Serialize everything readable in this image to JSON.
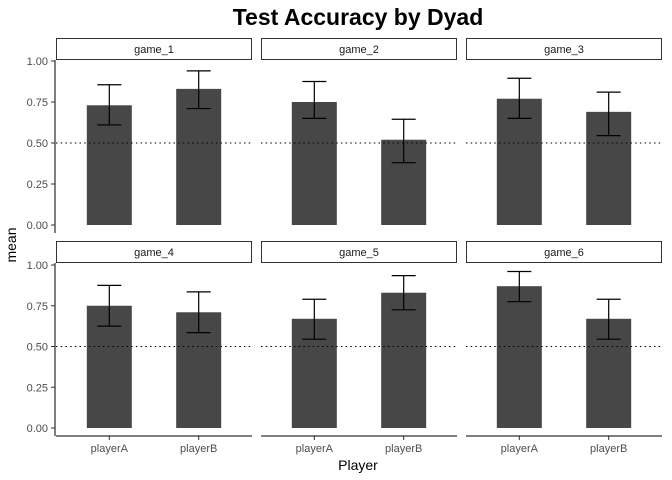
{
  "chart_data": {
    "type": "bar",
    "title": "Test Accuracy by Dyad",
    "xlabel": "Player",
    "ylabel": "mean",
    "ylim": [
      0,
      1.12
    ],
    "yticks": [
      "0.00",
      "0.25",
      "0.50",
      "0.75",
      "1.00"
    ],
    "reference_line": 0.5,
    "categories": [
      "playerA",
      "playerB"
    ],
    "bar_color": "#474747",
    "panels": [
      {
        "label": "game_1",
        "values": [
          0.73,
          0.83
        ],
        "error_low": [
          0.61,
          0.71
        ],
        "error_high": [
          0.855,
          0.94
        ]
      },
      {
        "label": "game_2",
        "values": [
          0.75,
          0.52
        ],
        "error_low": [
          0.65,
          0.38
        ],
        "error_high": [
          0.875,
          0.645
        ]
      },
      {
        "label": "game_3",
        "values": [
          0.77,
          0.69
        ],
        "error_low": [
          0.65,
          0.545
        ],
        "error_high": [
          0.895,
          0.81
        ]
      },
      {
        "label": "game_4",
        "values": [
          0.75,
          0.71
        ],
        "error_low": [
          0.625,
          0.585
        ],
        "error_high": [
          0.875,
          0.835
        ]
      },
      {
        "label": "game_5",
        "values": [
          0.67,
          0.83
        ],
        "error_low": [
          0.545,
          0.725
        ],
        "error_high": [
          0.79,
          0.935
        ]
      },
      {
        "label": "game_6",
        "values": [
          0.87,
          0.67
        ],
        "error_low": [
          0.775,
          0.545
        ],
        "error_high": [
          0.96,
          0.79
        ]
      }
    ]
  }
}
